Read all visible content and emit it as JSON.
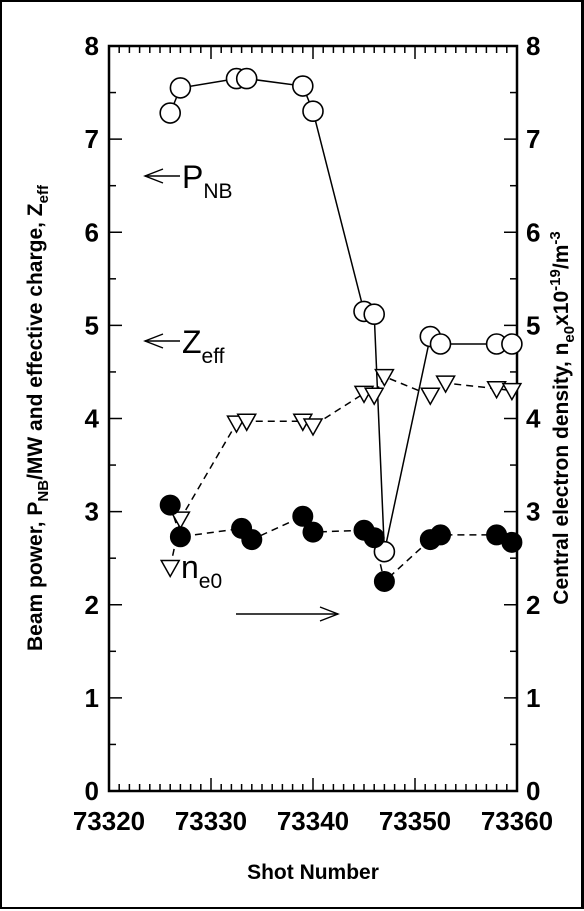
{
  "chart_data": {
    "type": "scatter",
    "xlabel": "Shot Number",
    "ylabel_left": "Beam power, P_NB/MW and effective charge, Z_eff",
    "ylabel_right": "Central electron density, n_e0 x10^-19/m^-3",
    "xlim": [
      73320,
      73360
    ],
    "ylim": [
      0,
      8
    ],
    "xticks": [
      "73320",
      "73330",
      "73340",
      "73350",
      "73360"
    ],
    "yticks_left": [
      "0",
      "1",
      "2",
      "3",
      "4",
      "5",
      "6",
      "7",
      "8"
    ],
    "yticks_right": [
      "0",
      "1",
      "2",
      "3",
      "4",
      "5",
      "6",
      "7",
      "8"
    ],
    "grid": false,
    "series": [
      {
        "id": "pnb",
        "marker": "open-circle",
        "line": "solid",
        "x": [
          73326,
          73327,
          73332.5,
          73333.5,
          73339,
          73340,
          73345,
          73346,
          73347,
          73351.5,
          73352.5,
          73358,
          73359.5
        ],
        "y": [
          7.28,
          7.55,
          7.65,
          7.65,
          7.57,
          7.3,
          5.15,
          5.12,
          2.57,
          4.88,
          4.8,
          4.8,
          4.8
        ],
        "label_main": "P",
        "label_sub": "NB",
        "arrow": "left"
      },
      {
        "id": "zeff",
        "marker": "open-down-triangle",
        "line": "dashed",
        "x": [
          73326,
          73327,
          73332.5,
          73333.5,
          73339,
          73340,
          73345,
          73346,
          73347,
          73351.5,
          73353,
          73358,
          73359.5
        ],
        "y": [
          2.4,
          2.92,
          3.95,
          3.97,
          3.97,
          3.92,
          4.27,
          4.25,
          4.45,
          4.25,
          4.38,
          4.32,
          4.3
        ],
        "label_main": "Z",
        "label_sub": "eff",
        "arrow": "left"
      },
      {
        "id": "ne0",
        "marker": "filled-circle",
        "line": "dashed",
        "x": [
          73326,
          73327,
          73333,
          73334,
          73339,
          73340,
          73345,
          73346,
          73347,
          73351.5,
          73352.5,
          73358,
          73359.5
        ],
        "y": [
          3.07,
          2.73,
          2.82,
          2.7,
          2.95,
          2.78,
          2.8,
          2.72,
          2.25,
          2.7,
          2.75,
          2.75,
          2.67
        ],
        "label_main": "n",
        "label_sub": "e0",
        "arrow": "right"
      }
    ]
  },
  "colors": {
    "ink": "#000000",
    "paper": "#ffffff"
  }
}
